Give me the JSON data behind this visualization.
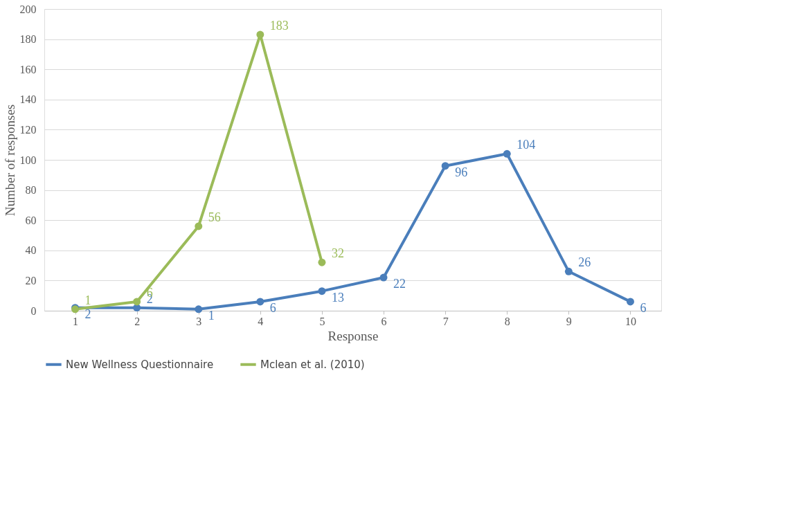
{
  "chart_data": {
    "type": "line",
    "xlabel": "Response",
    "ylabel": "Number of responses",
    "categories": [
      "1",
      "2",
      "3",
      "4",
      "5",
      "6",
      "7",
      "8",
      "9",
      "10"
    ],
    "series": [
      {
        "name": "New Wellness Questionnaire",
        "color": "#4a7ebb",
        "values": [
          2,
          2,
          1,
          6,
          13,
          22,
          96,
          104,
          26,
          6
        ]
      },
      {
        "name": "Mclean et al. (2010)",
        "color": "#9bbb59",
        "values": [
          1,
          6,
          56,
          183,
          32,
          null,
          null,
          null,
          null,
          null
        ]
      }
    ],
    "ylim": [
      0,
      200
    ],
    "yticks": [
      0,
      20,
      40,
      60,
      80,
      100,
      120,
      140,
      160,
      180,
      200
    ],
    "grid": "y",
    "legend": "bottom",
    "marker": "circle",
    "line_style": "solid",
    "data_labels": true
  }
}
